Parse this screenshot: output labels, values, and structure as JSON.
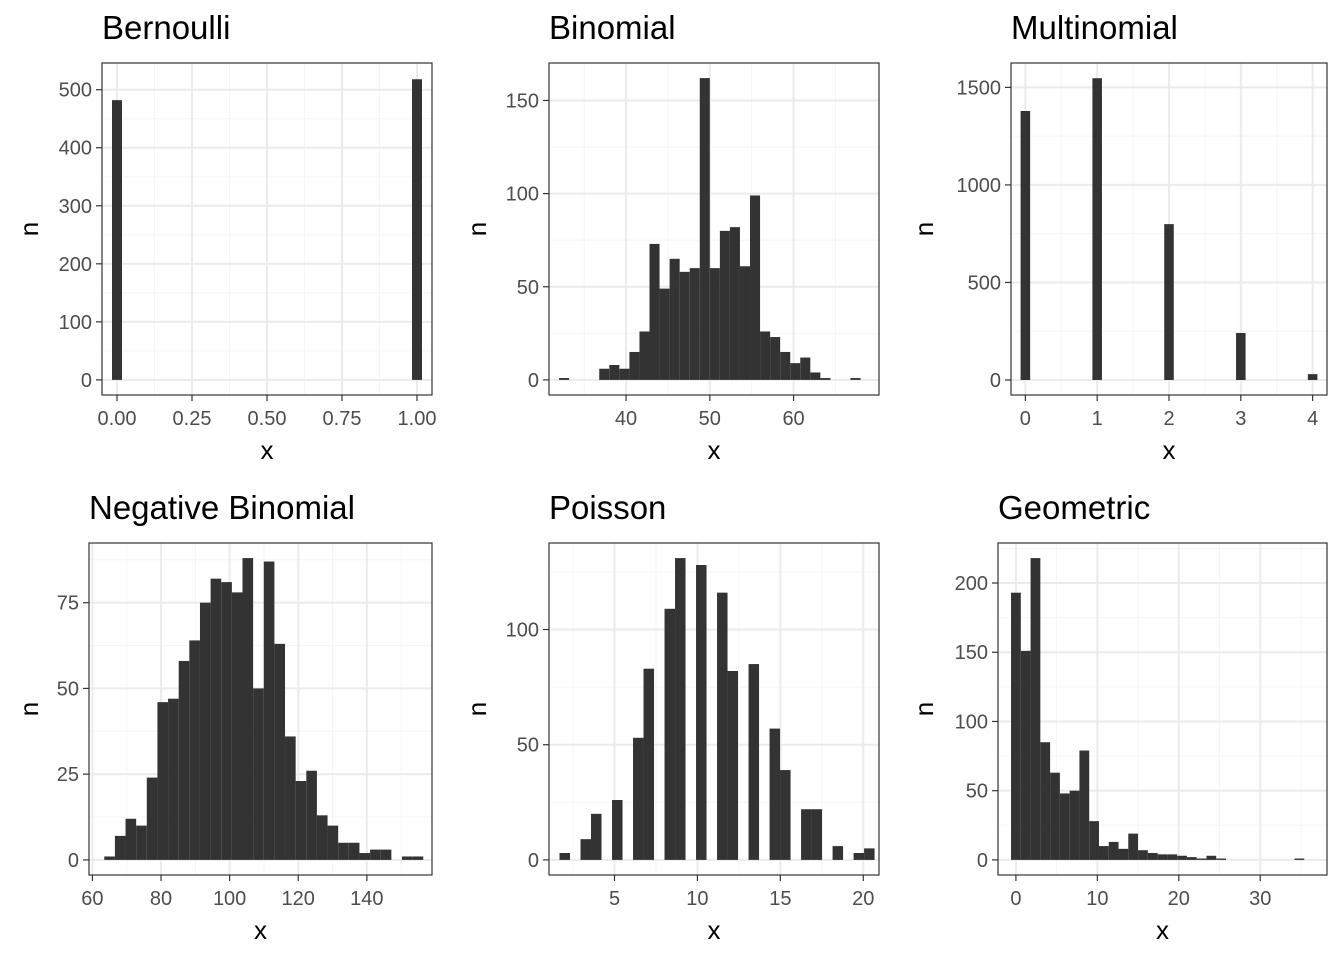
{
  "colors": {
    "bar": "#333333",
    "grid_major": "#ebebeb",
    "grid_minor": "#f5f5f5",
    "panel_border": "#333333",
    "tick_text": "#4d4d4d"
  },
  "chart_data": [
    {
      "type": "bar",
      "title": "Bernoulli",
      "xlabel": "x",
      "ylabel": "n",
      "xlim": [
        -0.05,
        1.05
      ],
      "ylim": [
        -26,
        546
      ],
      "xticks": [
        0,
        0.25,
        0.5,
        0.75,
        1
      ],
      "xtick_labels": [
        "0.00",
        "0.25",
        "0.50",
        "0.75",
        "1.00"
      ],
      "yticks": [
        0,
        100,
        200,
        300,
        400,
        500
      ],
      "ytick_labels": [
        "0",
        "100",
        "200",
        "300",
        "400",
        "500"
      ],
      "bar_width": 0.0333,
      "x": [
        0,
        1
      ],
      "values": [
        482,
        518
      ],
      "grid": true
    },
    {
      "type": "bar",
      "title": "Binomial",
      "xlabel": "x",
      "ylabel": "n",
      "xlim": [
        30.8,
        70.2
      ],
      "ylim": [
        -8.1,
        170.1
      ],
      "xticks": [
        40,
        50,
        60
      ],
      "xtick_labels": [
        "40",
        "50",
        "60"
      ],
      "yticks": [
        0,
        50,
        100,
        150
      ],
      "ytick_labels": [
        "0",
        "50",
        "100",
        "150"
      ],
      "bar_width": 1.2,
      "x": [
        32.6,
        33.8,
        35.0,
        36.2,
        37.4,
        38.6,
        39.8,
        41.0,
        42.2,
        43.4,
        44.6,
        45.8,
        47.0,
        48.2,
        49.4,
        50.6,
        51.8,
        53.0,
        54.2,
        55.4,
        56.6,
        57.8,
        59.0,
        60.2,
        61.4,
        62.6,
        63.8,
        65.0,
        66.2,
        67.4
      ],
      "values": [
        1,
        0,
        0,
        0,
        6,
        8,
        6,
        15,
        26,
        73,
        49,
        65,
        58,
        60,
        162,
        60,
        80,
        82,
        61,
        99,
        26,
        23,
        15,
        9,
        12,
        4,
        1,
        0,
        0,
        1
      ],
      "grid": true
    },
    {
      "type": "bar",
      "title": "Multinomial",
      "xlabel": "x",
      "ylabel": "n",
      "xlim": [
        -0.2,
        4.2
      ],
      "ylim": [
        -77,
        1625
      ],
      "xticks": [
        0,
        1,
        2,
        3,
        4
      ],
      "xtick_labels": [
        "0",
        "1",
        "2",
        "3",
        "4"
      ],
      "yticks": [
        0,
        500,
        1000,
        1500
      ],
      "ytick_labels": [
        "0",
        "500",
        "1000",
        "1500"
      ],
      "bar_width": 0.133,
      "x": [
        0,
        1,
        2,
        3,
        4
      ],
      "values": [
        1379,
        1547,
        799,
        241,
        30
      ],
      "grid": true
    },
    {
      "type": "bar",
      "title": "Negative Binomial",
      "xlabel": "x",
      "ylabel": "n",
      "xlim": [
        59,
        159
      ],
      "ylim": [
        -4.4,
        92.4
      ],
      "xticks": [
        60,
        80,
        100,
        120,
        140
      ],
      "xtick_labels": [
        "60",
        "80",
        "100",
        "120",
        "140"
      ],
      "yticks": [
        0,
        25,
        50,
        75
      ],
      "ytick_labels": [
        "0",
        "25",
        "50",
        "75"
      ],
      "bar_width": 3.1,
      "x": [
        65.0,
        68.1,
        71.2,
        74.3,
        77.4,
        80.5,
        83.6,
        86.7,
        89.8,
        92.9,
        96.0,
        99.1,
        102.2,
        105.3,
        108.4,
        111.5,
        114.6,
        117.7,
        120.8,
        123.9,
        127.0,
        130.1,
        133.2,
        136.3,
        139.4,
        142.5,
        145.6,
        148.7,
        151.8,
        154.9
      ],
      "values": [
        1,
        7,
        12,
        10,
        24,
        46,
        47,
        58,
        64,
        75,
        82,
        81,
        78,
        88,
        50,
        87,
        63,
        36,
        23,
        26,
        13,
        10,
        5,
        5,
        2,
        3,
        3,
        0,
        1,
        1
      ],
      "grid": true
    },
    {
      "type": "bar",
      "title": "Poisson",
      "xlabel": "x",
      "ylabel": "n",
      "xlim": [
        1.05,
        20.95
      ],
      "ylim": [
        -6.55,
        137.55
      ],
      "xticks": [
        5,
        10,
        15,
        20
      ],
      "xtick_labels": [
        "5",
        "10",
        "15",
        "20"
      ],
      "yticks": [
        0,
        50,
        100
      ],
      "ytick_labels": [
        "0",
        "50",
        "100"
      ],
      "bar_width": 0.633,
      "x": [
        2,
        2.633,
        3.267,
        3.9,
        4.533,
        5.167,
        5.8,
        6.433,
        7.067,
        7.7,
        8.333,
        8.967,
        9.6,
        10.233,
        10.867,
        11.5,
        12.133,
        12.767,
        13.4,
        14.033,
        14.667,
        15.3,
        15.933,
        16.567,
        17.2,
        17.833,
        18.467,
        19.1,
        19.733,
        20.367
      ],
      "values": [
        3,
        0,
        9,
        20,
        0,
        26,
        0,
        53,
        83,
        0,
        109,
        131,
        0,
        128,
        0,
        116,
        82,
        0,
        85,
        0,
        57,
        39,
        0,
        22,
        22,
        0,
        6,
        0,
        3,
        5
      ],
      "grid": true
    },
    {
      "type": "bar",
      "title": "Geometric",
      "xlabel": "x",
      "ylabel": "n",
      "xlim": [
        -2.2,
        38.2
      ],
      "ylim": [
        -10.9,
        228.9
      ],
      "xticks": [
        0,
        10,
        20,
        30
      ],
      "xtick_labels": [
        "0",
        "10",
        "20",
        "30"
      ],
      "yticks": [
        0,
        50,
        100,
        150,
        200
      ],
      "ytick_labels": [
        "0",
        "50",
        "100",
        "150",
        "200"
      ],
      "bar_width": 1.2,
      "x": [
        0,
        1.2,
        2.4,
        3.6,
        4.8,
        6.0,
        7.2,
        8.4,
        9.6,
        10.8,
        12.0,
        13.2,
        14.4,
        15.6,
        16.8,
        18.0,
        19.2,
        20.4,
        21.6,
        22.8,
        24.0,
        25.2,
        26.4,
        27.6,
        28.8,
        30.0,
        31.2,
        32.4,
        33.6,
        34.8
      ],
      "values": [
        193,
        151,
        218,
        85,
        63,
        48,
        50,
        79,
        28,
        10,
        13,
        8,
        19,
        7,
        5,
        4,
        4,
        3,
        2,
        1,
        3,
        1,
        0,
        0,
        0,
        0,
        0,
        0,
        0,
        1
      ],
      "grid": true
    }
  ]
}
